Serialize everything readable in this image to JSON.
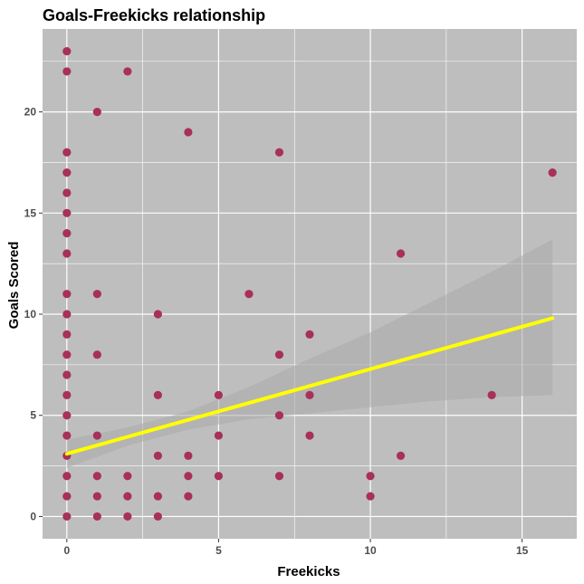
{
  "chart_data": {
    "type": "scatter",
    "title": "Goals-Freekicks relationship",
    "xlabel": "Freekicks",
    "ylabel": "Goals Scored",
    "xlim": [
      -0.8,
      16.8
    ],
    "ylim": [
      -1.1,
      24.1
    ],
    "x_ticks": [
      0,
      5,
      10,
      15
    ],
    "y_ticks": [
      0,
      5,
      10,
      15,
      20
    ],
    "grid": true,
    "legend": "none",
    "points": [
      [
        0,
        23
      ],
      [
        0,
        22
      ],
      [
        0,
        18
      ],
      [
        0,
        17
      ],
      [
        0,
        16
      ],
      [
        0,
        15
      ],
      [
        0,
        14
      ],
      [
        0,
        13
      ],
      [
        0,
        11
      ],
      [
        0,
        10
      ],
      [
        0,
        9
      ],
      [
        0,
        8
      ],
      [
        0,
        7
      ],
      [
        0,
        6
      ],
      [
        0,
        5
      ],
      [
        0,
        4
      ],
      [
        0,
        3
      ],
      [
        0,
        2
      ],
      [
        0,
        1
      ],
      [
        0,
        0
      ],
      [
        1,
        20
      ],
      [
        1,
        11
      ],
      [
        1,
        8
      ],
      [
        1,
        4
      ],
      [
        1,
        2
      ],
      [
        1,
        1
      ],
      [
        1,
        0
      ],
      [
        2,
        22
      ],
      [
        2,
        2
      ],
      [
        2,
        1
      ],
      [
        2,
        0
      ],
      [
        3,
        10
      ],
      [
        3,
        6
      ],
      [
        3,
        3
      ],
      [
        3,
        1
      ],
      [
        3,
        0
      ],
      [
        4,
        19
      ],
      [
        4,
        3
      ],
      [
        4,
        2
      ],
      [
        4,
        1
      ],
      [
        5,
        6
      ],
      [
        5,
        4
      ],
      [
        5,
        2
      ],
      [
        6,
        11
      ],
      [
        7,
        18
      ],
      [
        7,
        8
      ],
      [
        7,
        5
      ],
      [
        7,
        2
      ],
      [
        8,
        9
      ],
      [
        8,
        6
      ],
      [
        8,
        4
      ],
      [
        10,
        2
      ],
      [
        10,
        1
      ],
      [
        11,
        13
      ],
      [
        11,
        3
      ],
      [
        14,
        6
      ],
      [
        16,
        17
      ]
    ],
    "trend_line": {
      "x": [
        0,
        16
      ],
      "y": [
        3.1,
        9.8
      ]
    },
    "confidence_band": {
      "x": [
        0,
        2,
        4,
        6,
        8,
        10,
        12,
        14,
        16
      ],
      "lower": [
        2.4,
        3.5,
        4.3,
        4.8,
        5.1,
        5.4,
        5.7,
        5.9,
        6.0
      ],
      "upper": [
        3.8,
        4.4,
        5.2,
        6.4,
        7.8,
        9.1,
        10.6,
        12.1,
        13.7
      ]
    },
    "colors": {
      "point": "#a8305a",
      "trend_line": "#ffff00",
      "band": "#aaaaaa",
      "panel": "#bebebe",
      "grid": "#ffffff"
    }
  }
}
